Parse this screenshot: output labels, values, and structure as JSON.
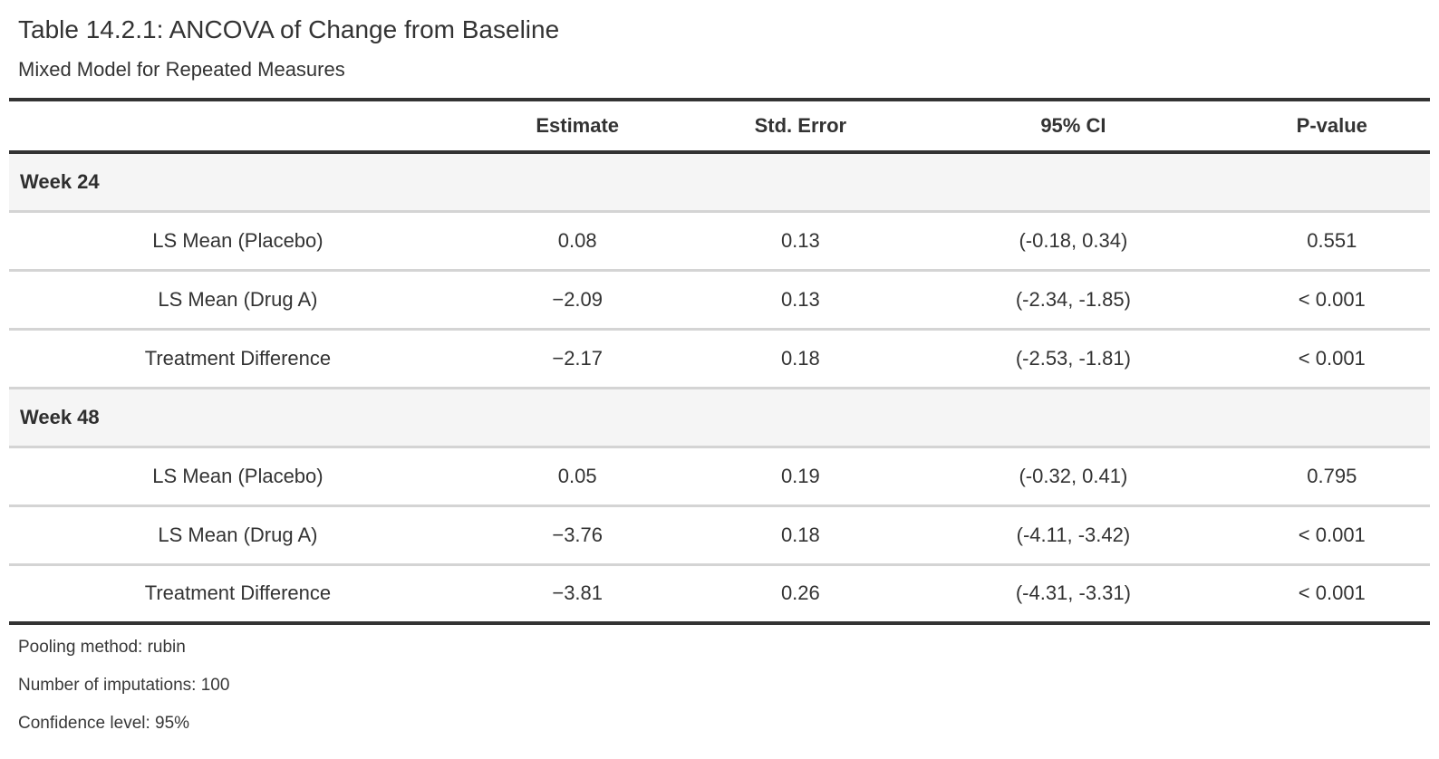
{
  "table": {
    "title": "Table 14.2.1: ANCOVA of Change from Baseline",
    "subtitle": "Mixed Model for Repeated Measures",
    "columns": {
      "stub": "",
      "estimate": "Estimate",
      "std_error": "Std. Error",
      "ci": "95% CI",
      "p_value": "P-value"
    },
    "groups": [
      {
        "label": "Week 24",
        "rows": [
          {
            "label": "LS Mean (Placebo)",
            "estimate": "0.08",
            "std_error": "0.13",
            "ci": "(-0.18, 0.34)",
            "p_value": "0.551"
          },
          {
            "label": "LS Mean (Drug A)",
            "estimate": "−2.09",
            "std_error": "0.13",
            "ci": "(-2.34, -1.85)",
            "p_value": "< 0.001"
          },
          {
            "label": "Treatment Difference",
            "estimate": "−2.17",
            "std_error": "0.18",
            "ci": "(-2.53, -1.81)",
            "p_value": "< 0.001"
          }
        ]
      },
      {
        "label": "Week 48",
        "rows": [
          {
            "label": "LS Mean (Placebo)",
            "estimate": "0.05",
            "std_error": "0.19",
            "ci": "(-0.32, 0.41)",
            "p_value": "0.795"
          },
          {
            "label": "LS Mean (Drug A)",
            "estimate": "−3.76",
            "std_error": "0.18",
            "ci": "(-4.11, -3.42)",
            "p_value": "< 0.001"
          },
          {
            "label": "Treatment Difference",
            "estimate": "−3.81",
            "std_error": "0.26",
            "ci": "(-4.31, -3.31)",
            "p_value": "< 0.001"
          }
        ]
      }
    ],
    "footnotes": [
      "Pooling method: rubin",
      "Number of imputations: 100",
      "Confidence level: 95%"
    ],
    "colors": {
      "heavy_border": "#333333",
      "light_border": "#d4d4d4",
      "group_row_bg": "#f5f5f5",
      "text": "#333333",
      "background": "#ffffff"
    }
  }
}
